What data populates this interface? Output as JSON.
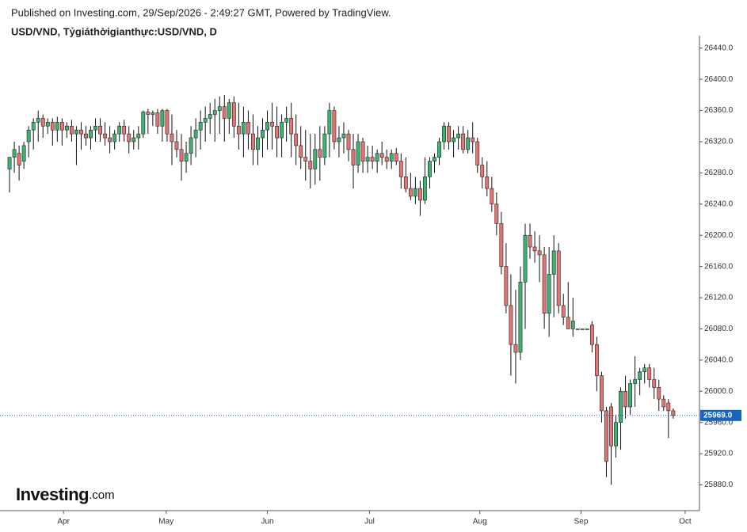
{
  "header": {
    "published": "Published on Investing.com, 29/Sep/2026 - 2:49:27 GMT, Powered by TradingView.",
    "symbol": "USD/VND, Tỷgiáthờigianthực:USD/VND, D"
  },
  "logo": {
    "name": "Investing",
    "suffix": ".com"
  },
  "chart_data": {
    "type": "candlestick",
    "up_color": "#3cb371",
    "down_color": "#e57373",
    "last_price": {
      "value": 25969,
      "label": "25969.0"
    },
    "last_price_color": "#1565c0",
    "xlim": [
      -2,
      144.5
    ],
    "xticks": [
      {
        "value": 11.3,
        "label": "Apr"
      },
      {
        "value": 32.8,
        "label": "May"
      },
      {
        "value": 54,
        "label": "Jun"
      },
      {
        "value": 75.4,
        "label": "Jul"
      },
      {
        "value": 98.5,
        "label": "Aug"
      },
      {
        "value": 119.7,
        "label": "Sep"
      },
      {
        "value": 141.5,
        "label": "Oct"
      }
    ],
    "ylim": [
      25847,
      26456
    ],
    "yticks": [
      {
        "value": 25880,
        "label": "25880.0"
      },
      {
        "value": 25920,
        "label": "25920.0"
      },
      {
        "value": 25960,
        "label": "25960.0"
      },
      {
        "value": 26000,
        "label": "26000.0"
      },
      {
        "value": 26040,
        "label": "26040.0"
      },
      {
        "value": 26080,
        "label": "26080.0"
      },
      {
        "value": 26120,
        "label": "26120.0"
      },
      {
        "value": 26160,
        "label": "26160.0"
      },
      {
        "value": 26200,
        "label": "26200.0"
      },
      {
        "value": 26240,
        "label": "26240.0"
      },
      {
        "value": 26280,
        "label": "26280.0"
      },
      {
        "value": 26320,
        "label": "26320.0"
      },
      {
        "value": 26360,
        "label": "26360.0"
      },
      {
        "value": 26400,
        "label": "26400.0"
      },
      {
        "value": 26440,
        "label": "26440.0"
      }
    ],
    "candles": [
      [
        26285,
        26300,
        26255,
        26300
      ],
      [
        26300,
        26320,
        26280,
        26310
      ],
      [
        26305,
        26315,
        26270,
        26290
      ],
      [
        26295,
        26320,
        26285,
        26315
      ],
      [
        26320,
        26340,
        26300,
        26335
      ],
      [
        26335,
        26350,
        26310,
        26345
      ],
      [
        26345,
        26360,
        26320,
        26350
      ],
      [
        26350,
        26355,
        26325,
        26340
      ],
      [
        26340,
        26350,
        26330,
        26345
      ],
      [
        26345,
        26350,
        26315,
        26335
      ],
      [
        26335,
        26352,
        26320,
        26345
      ],
      [
        26345,
        26350,
        26315,
        26335
      ],
      [
        26335,
        26345,
        26325,
        26340
      ],
      [
        26340,
        26348,
        26320,
        26330
      ],
      [
        26330,
        26340,
        26290,
        26335
      ],
      [
        26335,
        26345,
        26310,
        26330
      ],
      [
        26330,
        26340,
        26315,
        26325
      ],
      [
        26325,
        26340,
        26310,
        26335
      ],
      [
        26335,
        26350,
        26320,
        26340
      ],
      [
        26340,
        26350,
        26320,
        26330
      ],
      [
        26330,
        26345,
        26315,
        26325
      ],
      [
        26325,
        26340,
        26305,
        26320
      ],
      [
        26320,
        26335,
        26310,
        26330
      ],
      [
        26330,
        26345,
        26320,
        26340
      ],
      [
        26340,
        26348,
        26320,
        26330
      ],
      [
        26330,
        26340,
        26305,
        26320
      ],
      [
        26320,
        26335,
        26310,
        26325
      ],
      [
        26325,
        26340,
        26310,
        26330
      ],
      [
        26330,
        26360,
        26325,
        26358
      ],
      [
        26358,
        26362,
        26330,
        26355
      ],
      [
        26355,
        26360,
        26340,
        26357
      ],
      [
        26357,
        26362,
        26330,
        26340
      ],
      [
        26340,
        26362,
        26320,
        26360
      ],
      [
        26360,
        26362,
        26320,
        26330
      ],
      [
        26330,
        26355,
        26290,
        26320
      ],
      [
        26320,
        26335,
        26300,
        26310
      ],
      [
        26310,
        26330,
        26270,
        26295
      ],
      [
        26295,
        26320,
        26280,
        26305
      ],
      [
        26305,
        26340,
        26290,
        26325
      ],
      [
        26325,
        26350,
        26300,
        26335
      ],
      [
        26335,
        26360,
        26310,
        26345
      ],
      [
        26345,
        26365,
        26320,
        26350
      ],
      [
        26350,
        26370,
        26330,
        26355
      ],
      [
        26355,
        26375,
        26320,
        26360
      ],
      [
        26360,
        26378,
        26330,
        26365
      ],
      [
        26365,
        26380,
        26320,
        26350
      ],
      [
        26350,
        26375,
        26330,
        26370
      ],
      [
        26370,
        26378,
        26325,
        26340
      ],
      [
        26340,
        26370,
        26310,
        26330
      ],
      [
        26330,
        26365,
        26300,
        26345
      ],
      [
        26345,
        26360,
        26310,
        26330
      ],
      [
        26330,
        26355,
        26290,
        26310
      ],
      [
        26310,
        26340,
        26290,
        26325
      ],
      [
        26325,
        26350,
        26300,
        26335
      ],
      [
        26335,
        26360,
        26310,
        26345
      ],
      [
        26345,
        26370,
        26310,
        26340
      ],
      [
        26340,
        26365,
        26300,
        26325
      ],
      [
        26325,
        26355,
        26300,
        26345
      ],
      [
        26345,
        26365,
        26320,
        26350
      ],
      [
        26350,
        26370,
        26300,
        26330
      ],
      [
        26330,
        26355,
        26290,
        26315
      ],
      [
        26315,
        26340,
        26285,
        26300
      ],
      [
        26300,
        26335,
        26270,
        26295
      ],
      [
        26295,
        26330,
        26260,
        26285
      ],
      [
        26285,
        26330,
        26265,
        26310
      ],
      [
        26310,
        26340,
        26270,
        26300
      ],
      [
        26300,
        26340,
        26290,
        26330
      ],
      [
        26330,
        26370,
        26300,
        26360
      ],
      [
        26360,
        26365,
        26310,
        26320
      ],
      [
        26320,
        26340,
        26300,
        26325
      ],
      [
        26325,
        26345,
        26305,
        26330
      ],
      [
        26330,
        26335,
        26295,
        26310
      ],
      [
        26310,
        26330,
        26260,
        26290
      ],
      [
        26290,
        26330,
        26280,
        26320
      ],
      [
        26320,
        26325,
        26280,
        26295
      ],
      [
        26295,
        26315,
        26280,
        26300
      ],
      [
        26300,
        26315,
        26285,
        26295
      ],
      [
        26295,
        26310,
        26280,
        26305
      ],
      [
        26305,
        26320,
        26290,
        26300
      ],
      [
        26300,
        26310,
        26285,
        26295
      ],
      [
        26295,
        26310,
        26285,
        26305
      ],
      [
        26305,
        26312,
        26290,
        26295
      ],
      [
        26295,
        26305,
        26260,
        26275
      ],
      [
        26275,
        26300,
        26255,
        26260
      ],
      [
        26260,
        26280,
        26245,
        26250
      ],
      [
        26250,
        26275,
        26240,
        26260
      ],
      [
        26260,
        26270,
        26225,
        26245
      ],
      [
        26245,
        26300,
        26240,
        26275
      ],
      [
        26275,
        26300,
        26260,
        26295
      ],
      [
        26295,
        26305,
        26280,
        26300
      ],
      [
        26300,
        26325,
        26290,
        26320
      ],
      [
        26320,
        26345,
        26310,
        26340
      ],
      [
        26340,
        26345,
        26310,
        26320
      ],
      [
        26320,
        26335,
        26300,
        26325
      ],
      [
        26325,
        26340,
        26310,
        26330
      ],
      [
        26330,
        26340,
        26305,
        26310
      ],
      [
        26310,
        26335,
        26305,
        26325
      ],
      [
        26325,
        26345,
        26305,
        26320
      ],
      [
        26320,
        26325,
        26280,
        26290
      ],
      [
        26290,
        26300,
        26260,
        26275
      ],
      [
        26275,
        26295,
        26250,
        26260
      ],
      [
        26260,
        26275,
        26230,
        26240
      ],
      [
        26240,
        26255,
        26200,
        26215
      ],
      [
        26215,
        26230,
        26150,
        26160
      ],
      [
        26160,
        26190,
        26100,
        26110
      ],
      [
        26110,
        26150,
        26020,
        26060
      ],
      [
        26060,
        26130,
        26010,
        26050
      ],
      [
        26050,
        26160,
        26040,
        26140
      ],
      [
        26140,
        26215,
        26080,
        26200
      ],
      [
        26200,
        26215,
        26170,
        26185
      ],
      [
        26185,
        26205,
        26165,
        26180
      ],
      [
        26180,
        26200,
        26140,
        26175
      ],
      [
        26175,
        26185,
        26080,
        26100
      ],
      [
        26100,
        26185,
        26070,
        26150
      ],
      [
        26150,
        26200,
        26095,
        26180
      ],
      [
        26180,
        26190,
        26100,
        26110
      ],
      [
        26110,
        26125,
        26085,
        26095
      ],
      [
        26095,
        26140,
        26080,
        26080
      ],
      [
        26080,
        26120,
        26070,
        26090
      ],
      [
        26080,
        26080,
        26080,
        26080
      ],
      [
        26080,
        26080,
        26080,
        26080
      ],
      [
        26080,
        26080,
        26080,
        26080
      ],
      [
        26085,
        26090,
        26050,
        26060
      ],
      [
        26060,
        26070,
        26000,
        26020
      ],
      [
        26020,
        26025,
        25960,
        25975
      ],
      [
        25975,
        25980,
        25890,
        25910
      ],
      [
        25980,
        25985,
        25880,
        25930
      ],
      [
        25930,
        25970,
        25915,
        25960
      ],
      [
        25960,
        26005,
        25925,
        26000
      ],
      [
        26000,
        26020,
        25965,
        25980
      ],
      [
        25980,
        26015,
        25970,
        26010
      ],
      [
        26010,
        26045,
        25980,
        26015
      ],
      [
        26015,
        26030,
        25995,
        26025
      ],
      [
        26025,
        26035,
        26010,
        26030
      ],
      [
        26030,
        26035,
        26005,
        26015
      ],
      [
        26015,
        26030,
        25990,
        26005
      ],
      [
        26005,
        26015,
        25975,
        25990
      ],
      [
        25990,
        25995,
        25975,
        25980
      ],
      [
        25985,
        25990,
        25940,
        25975
      ],
      [
        25975,
        25978,
        25965,
        25969
      ]
    ]
  }
}
